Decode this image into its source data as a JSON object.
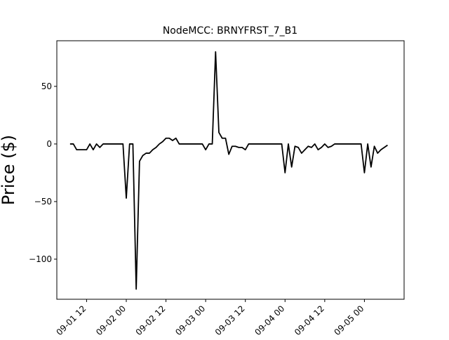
{
  "chart_data": {
    "type": "line",
    "title": "NodeMCC: BRNYFRST_7_B1",
    "y_label": "Price ($)",
    "x": [
      "09-01 07",
      "09-01 08",
      "09-01 09",
      "09-01 10",
      "09-01 11",
      "09-01 12",
      "09-01 13",
      "09-01 14",
      "09-01 15",
      "09-01 16",
      "09-01 17",
      "09-01 18",
      "09-01 19",
      "09-01 20",
      "09-01 21",
      "09-01 22",
      "09-01 23",
      "09-02 00",
      "09-02 01",
      "09-02 02",
      "09-02 03",
      "09-02 04",
      "09-02 05",
      "09-02 06",
      "09-02 07",
      "09-02 08",
      "09-02 09",
      "09-02 10",
      "09-02 11",
      "09-02 12",
      "09-02 13",
      "09-02 14",
      "09-02 15",
      "09-02 16",
      "09-02 17",
      "09-02 18",
      "09-02 19",
      "09-02 20",
      "09-02 21",
      "09-02 22",
      "09-02 23",
      "09-03 00",
      "09-03 01",
      "09-03 02",
      "09-03 03",
      "09-03 04",
      "09-03 05",
      "09-03 06",
      "09-03 07",
      "09-03 08",
      "09-03 09",
      "09-03 10",
      "09-03 11",
      "09-03 12",
      "09-03 13",
      "09-03 14",
      "09-03 15",
      "09-03 16",
      "09-03 17",
      "09-03 18",
      "09-03 19",
      "09-03 20",
      "09-03 21",
      "09-03 22",
      "09-03 23",
      "09-04 00",
      "09-04 01",
      "09-04 02",
      "09-04 03",
      "09-04 04",
      "09-04 05",
      "09-04 06",
      "09-04 07",
      "09-04 08",
      "09-04 09",
      "09-04 10",
      "09-04 11",
      "09-04 12",
      "09-04 13",
      "09-04 14",
      "09-04 15",
      "09-04 16",
      "09-04 17",
      "09-04 18",
      "09-04 19",
      "09-04 20",
      "09-04 21",
      "09-04 22",
      "09-04 23",
      "09-05 00",
      "09-05 01",
      "09-05 02",
      "09-05 03",
      "09-05 04",
      "09-05 05",
      "09-05 06",
      "09-05 07"
    ],
    "series": [
      {
        "color": "#000000",
        "values": [
          0,
          0,
          -5,
          -5,
          -5,
          -5,
          0,
          -5,
          0,
          -3,
          0,
          0,
          0,
          0,
          0,
          0,
          0,
          -47,
          0,
          0,
          -126,
          -15,
          -10,
          -8,
          -8,
          -5,
          -3,
          0,
          2,
          5,
          5,
          3,
          5,
          0,
          0,
          0,
          0,
          0,
          0,
          0,
          0,
          -5,
          0,
          0,
          80,
          10,
          5,
          5,
          -9,
          -2,
          -2,
          -3,
          -3,
          -5,
          0,
          0,
          0,
          0,
          0,
          0,
          0,
          0,
          0,
          0,
          0,
          -25,
          0,
          -20,
          -2,
          -3,
          -8,
          -5,
          -2,
          -3,
          0,
          -5,
          -3,
          0,
          -3,
          -2,
          0,
          0,
          0,
          0,
          0,
          0,
          0,
          0,
          0,
          -25,
          0,
          -20,
          -2,
          -8,
          -5,
          -3,
          -1
        ]
      }
    ],
    "xlim": [
      "09-01 03",
      "09-05 12"
    ],
    "xticks": [
      "09-01 12",
      "09-02 00",
      "09-02 12",
      "09-03 00",
      "09-03 12",
      "09-04 00",
      "09-04 12",
      "09-05 00"
    ],
    "ylim": [
      -134.8,
      89.6
    ],
    "yticks": [
      {
        "value": -100,
        "label": "−100"
      },
      {
        "value": -50,
        "label": "−50"
      },
      0,
      50
    ]
  }
}
